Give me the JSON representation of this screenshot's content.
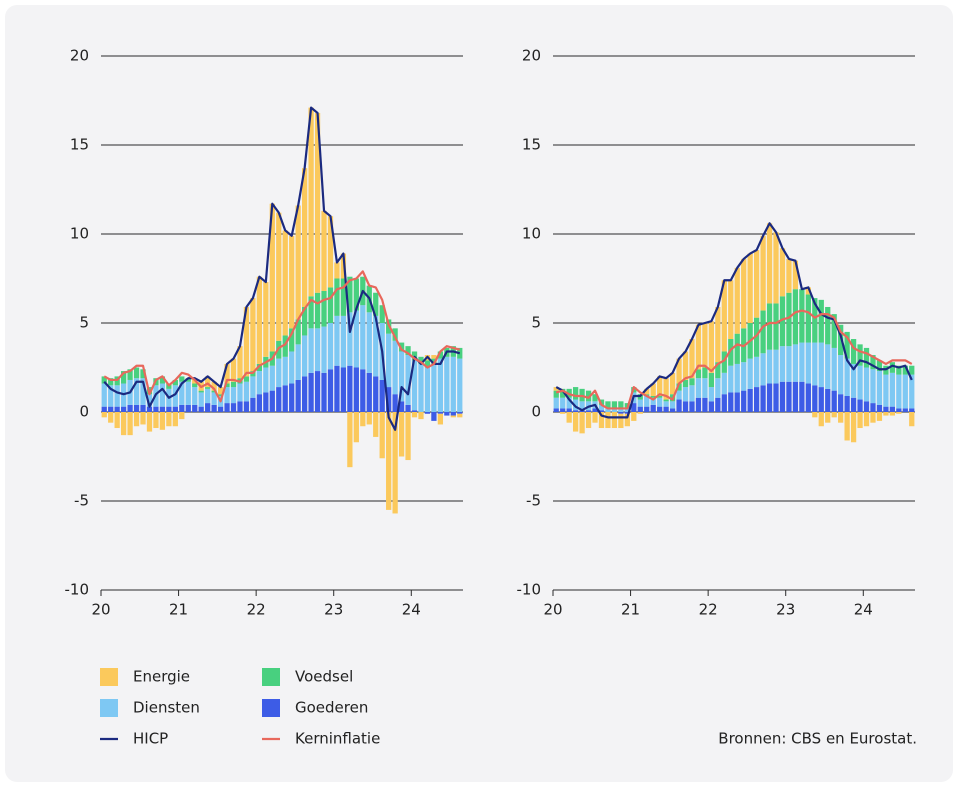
{
  "chart_data": [
    {
      "type": "bar",
      "categories": [
        "20",
        null,
        null,
        null,
        null,
        null,
        null,
        null,
        null,
        null,
        null,
        null,
        "21",
        null,
        null,
        null,
        null,
        null,
        null,
        null,
        null,
        null,
        null,
        null,
        "22",
        null,
        null,
        null,
        null,
        null,
        null,
        null,
        null,
        null,
        null,
        null,
        "23",
        null,
        null,
        null,
        null,
        null,
        null,
        null,
        null,
        null,
        null,
        null,
        "24",
        null,
        null,
        null,
        null,
        null,
        null,
        null
      ],
      "ylim": [
        -10,
        20
      ],
      "yticks": [
        -10,
        -5,
        0,
        5,
        10,
        15,
        20
      ],
      "series": [
        {
          "name": "Goederen",
          "color": "#3d5ce6",
          "type": "bar",
          "values": [
            0.3,
            0.3,
            0.3,
            0.3,
            0.4,
            0.4,
            0.4,
            0.3,
            0.3,
            0.3,
            0.3,
            0.3,
            0.4,
            0.4,
            0.4,
            0.3,
            0.5,
            0.4,
            0.3,
            0.5,
            0.5,
            0.6,
            0.6,
            0.8,
            1.0,
            1.1,
            1.2,
            1.4,
            1.5,
            1.6,
            1.8,
            2.0,
            2.2,
            2.3,
            2.2,
            2.4,
            2.6,
            2.5,
            2.6,
            2.5,
            2.4,
            2.2,
            2.0,
            1.8,
            1.4,
            1.0,
            0.6,
            0.4,
            0.1,
            0.0,
            -0.1,
            -0.5,
            -0.1,
            -0.2,
            -0.2,
            -0.1
          ]
        },
        {
          "name": "Diensten",
          "color": "#7ec8f3",
          "type": "bar",
          "values": [
            1.3,
            1.2,
            1.2,
            1.3,
            1.4,
            1.5,
            1.5,
            0.7,
            1.2,
            1.3,
            1.0,
            1.2,
            1.3,
            1.3,
            1.0,
            0.8,
            0.8,
            0.7,
            0.6,
            0.9,
            0.9,
            1.0,
            1.1,
            1.2,
            1.3,
            1.4,
            1.4,
            1.6,
            1.6,
            1.8,
            2.0,
            2.3,
            2.5,
            2.4,
            2.6,
            2.6,
            2.8,
            2.9,
            3.0,
            3.2,
            3.6,
            3.4,
            3.4,
            3.2,
            3.0,
            3.0,
            2.8,
            2.8,
            2.8,
            2.7,
            2.5,
            2.7,
            3.0,
            3.1,
            3.1,
            3.0
          ]
        },
        {
          "name": "Voedsel",
          "color": "#48d07f",
          "type": "bar",
          "values": [
            0.4,
            0.4,
            0.5,
            0.7,
            0.6,
            0.6,
            0.5,
            0.4,
            0.4,
            0.4,
            0.3,
            0.3,
            0.3,
            0.2,
            0.2,
            0.1,
            0.1,
            0.1,
            0.1,
            0.2,
            0.3,
            0.3,
            0.3,
            0.3,
            0.4,
            0.6,
            0.8,
            1.0,
            1.2,
            1.3,
            1.4,
            1.6,
            1.8,
            2.0,
            2.0,
            2.0,
            2.1,
            2.1,
            2.0,
            1.8,
            1.6,
            1.5,
            1.3,
            1.0,
            0.8,
            0.7,
            0.5,
            0.5,
            0.5,
            0.4,
            0.4,
            0.3,
            0.4,
            0.5,
            0.6,
            0.6
          ]
        },
        {
          "name": "Energie",
          "color": "#fbc95c",
          "type": "bar",
          "values": [
            -0.3,
            -0.6,
            -0.9,
            -1.3,
            -1.3,
            -0.8,
            -0.7,
            -1.1,
            -0.9,
            -1.0,
            -0.8,
            -0.8,
            -0.4,
            0.0,
            0.3,
            0.5,
            0.6,
            0.5,
            0.4,
            1.1,
            1.3,
            1.8,
            3.9,
            4.1,
            4.9,
            4.2,
            8.3,
            7.2,
            5.9,
            5.2,
            6.4,
            7.8,
            10.6,
            10.1,
            4.5,
            4.0,
            0.9,
            1.4,
            -3.1,
            -1.7,
            -0.8,
            -0.7,
            -1.4,
            -2.6,
            -5.5,
            -5.7,
            -2.5,
            -2.7,
            -0.3,
            -0.4,
            0.3,
            0.2,
            -0.6,
            0.0,
            -0.1,
            -0.2
          ]
        },
        {
          "name": "HICP",
          "color": "#1b2a80",
          "type": "line",
          "values": [
            1.7,
            1.3,
            1.1,
            1.0,
            1.1,
            1.7,
            1.7,
            0.3,
            1.0,
            1.3,
            0.8,
            1.0,
            1.6,
            1.9,
            1.9,
            1.7,
            2.0,
            1.7,
            1.4,
            2.7,
            3.0,
            3.7,
            5.9,
            6.4,
            7.6,
            7.3,
            11.7,
            11.2,
            10.2,
            9.9,
            11.6,
            13.7,
            17.1,
            16.8,
            11.3,
            11.0,
            8.4,
            8.9,
            4.5,
            5.8,
            6.8,
            6.4,
            5.3,
            3.4,
            -0.3,
            -1.0,
            1.4,
            1.0,
            3.1,
            2.7,
            3.1,
            2.7,
            2.7,
            3.4,
            3.4,
            3.3
          ]
        },
        {
          "name": "Kerninflatie",
          "color": "#e8685c",
          "type": "line",
          "values": [
            2.0,
            1.8,
            1.8,
            2.2,
            2.3,
            2.6,
            2.6,
            1.0,
            1.8,
            2.0,
            1.5,
            1.8,
            2.2,
            2.1,
            1.8,
            1.4,
            1.6,
            1.3,
            0.6,
            1.8,
            1.8,
            1.7,
            2.2,
            2.2,
            2.6,
            2.8,
            3.0,
            3.6,
            3.8,
            4.4,
            5.2,
            5.8,
            6.3,
            6.1,
            6.3,
            6.4,
            6.9,
            7.0,
            7.4,
            7.5,
            7.9,
            7.1,
            7.0,
            6.3,
            4.9,
            4.2,
            3.5,
            3.3,
            3.0,
            2.8,
            2.5,
            2.7,
            3.4,
            3.7,
            3.6,
            3.5
          ]
        }
      ]
    },
    {
      "type": "bar",
      "categories": [
        "20",
        null,
        null,
        null,
        null,
        null,
        null,
        null,
        null,
        null,
        null,
        null,
        "21",
        null,
        null,
        null,
        null,
        null,
        null,
        null,
        null,
        null,
        null,
        null,
        "22",
        null,
        null,
        null,
        null,
        null,
        null,
        null,
        null,
        null,
        null,
        null,
        "23",
        null,
        null,
        null,
        null,
        null,
        null,
        null,
        null,
        null,
        null,
        null,
        "24",
        null,
        null,
        null,
        null,
        null,
        null,
        null
      ],
      "ylim": [
        -10,
        20
      ],
      "yticks": [
        -10,
        -5,
        0,
        5,
        10,
        15,
        20
      ],
      "series": [
        {
          "color": "#3d5ce6",
          "type": "bar",
          "values": [
            0.2,
            0.2,
            0.2,
            0.1,
            0.1,
            0.1,
            0.2,
            0.1,
            0.0,
            0.0,
            -0.1,
            -0.1,
            0.5,
            0.3,
            0.3,
            0.4,
            0.3,
            0.3,
            0.2,
            0.7,
            0.6,
            0.6,
            0.8,
            0.8,
            0.6,
            0.8,
            1.0,
            1.1,
            1.1,
            1.2,
            1.3,
            1.4,
            1.5,
            1.6,
            1.6,
            1.7,
            1.7,
            1.7,
            1.7,
            1.6,
            1.5,
            1.4,
            1.3,
            1.2,
            1.0,
            0.9,
            0.8,
            0.7,
            0.6,
            0.5,
            0.4,
            0.3,
            0.3,
            0.2,
            0.2,
            0.2
          ]
        },
        {
          "color": "#7ec8f3",
          "type": "bar",
          "values": [
            0.6,
            0.6,
            0.6,
            0.6,
            0.5,
            0.5,
            0.4,
            0.3,
            0.2,
            0.2,
            0.2,
            0.2,
            0.6,
            0.4,
            0.6,
            0.4,
            0.5,
            0.3,
            0.4,
            0.5,
            0.8,
            0.9,
            1.1,
            1.1,
            0.8,
            1.1,
            1.2,
            1.5,
            1.6,
            1.6,
            1.7,
            1.7,
            1.8,
            1.9,
            1.9,
            2.0,
            2.0,
            2.1,
            2.2,
            2.3,
            2.4,
            2.5,
            2.5,
            2.4,
            2.2,
            2.1,
            1.9,
            1.9,
            1.9,
            1.9,
            1.9,
            1.8,
            1.9,
            1.9,
            1.9,
            1.9
          ]
        },
        {
          "color": "#48d07f",
          "type": "bar",
          "values": [
            0.4,
            0.5,
            0.5,
            0.7,
            0.7,
            0.6,
            0.4,
            0.3,
            0.4,
            0.4,
            0.4,
            0.3,
            0.3,
            0.3,
            0.1,
            0.1,
            0.1,
            0.1,
            0.4,
            0.4,
            0.4,
            0.4,
            0.5,
            0.6,
            0.8,
            0.9,
            1.2,
            1.5,
            1.7,
            1.9,
            2.0,
            2.2,
            2.4,
            2.6,
            2.6,
            2.8,
            3.0,
            3.1,
            3.0,
            2.7,
            2.5,
            2.4,
            2.1,
            1.9,
            1.7,
            1.5,
            1.4,
            1.2,
            1.1,
            0.8,
            0.6,
            0.5,
            0.6,
            0.5,
            0.5,
            0.5
          ]
        },
        {
          "color": "#fbc95c",
          "type": "bar",
          "values": [
            0.2,
            -0.1,
            -0.6,
            -1.1,
            -1.2,
            -0.9,
            -0.6,
            -0.9,
            -0.9,
            -0.9,
            -0.8,
            -0.7,
            -0.5,
            -0.1,
            0.3,
            0.7,
            1.1,
            1.2,
            1.2,
            1.4,
            1.6,
            2.2,
            2.5,
            2.5,
            2.9,
            3.1,
            4.0,
            3.3,
            3.7,
            3.9,
            3.9,
            3.8,
            4.2,
            4.5,
            4.0,
            2.7,
            1.9,
            1.6,
            0.0,
            0.4,
            -0.3,
            -0.8,
            -0.6,
            -0.3,
            -0.6,
            -1.6,
            -1.7,
            -0.9,
            -0.8,
            -0.6,
            -0.5,
            -0.2,
            -0.2,
            -0.1,
            0.0,
            -0.8
          ]
        },
        {
          "color": "#1b2a80",
          "type": "line",
          "values": [
            1.4,
            1.2,
            0.7,
            0.3,
            0.1,
            0.3,
            0.4,
            -0.2,
            -0.3,
            -0.3,
            -0.3,
            -0.3,
            0.9,
            0.9,
            1.3,
            1.6,
            2.0,
            1.9,
            2.2,
            3.0,
            3.4,
            4.1,
            4.9,
            5.0,
            5.1,
            5.9,
            7.4,
            7.4,
            8.1,
            8.6,
            8.9,
            9.1,
            9.9,
            10.6,
            10.1,
            9.2,
            8.6,
            8.5,
            6.9,
            7.0,
            6.1,
            5.5,
            5.3,
            5.2,
            4.3,
            2.9,
            2.4,
            2.9,
            2.8,
            2.6,
            2.4,
            2.4,
            2.6,
            2.5,
            2.6,
            1.8
          ]
        },
        {
          "color": "#e8685c",
          "type": "line",
          "values": [
            1.1,
            1.2,
            1.0,
            0.9,
            0.9,
            0.8,
            1.2,
            0.4,
            0.2,
            0.2,
            0.2,
            0.2,
            1.4,
            1.1,
            0.9,
            0.7,
            1.0,
            0.9,
            0.7,
            1.6,
            1.9,
            2.0,
            2.6,
            2.6,
            2.3,
            2.7,
            2.9,
            3.5,
            3.8,
            3.7,
            4.0,
            4.3,
            4.8,
            5.0,
            5.0,
            5.2,
            5.3,
            5.6,
            5.7,
            5.6,
            5.3,
            5.5,
            5.5,
            5.3,
            4.5,
            4.2,
            3.6,
            3.4,
            3.3,
            3.1,
            2.9,
            2.7,
            2.9,
            2.9,
            2.9,
            2.7
          ]
        }
      ]
    }
  ],
  "source": "Bronnen: CBS en Eurostat."
}
